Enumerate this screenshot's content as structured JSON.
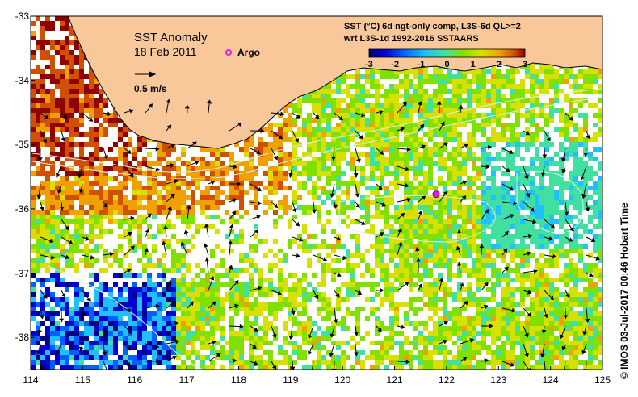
{
  "title": {
    "line1": "SST Anomaly",
    "line2": "18 Feb 2011"
  },
  "legend": {
    "argo_label": "Argo",
    "argo_color": "#e020e0",
    "vector_label": "0.5 m/s"
  },
  "header": {
    "line1": "SST (°C) 6d ngt-only comp, L3S-6d QL>=2",
    "line2": "wrt L3S-1d 1992-2016 SSTAARS"
  },
  "colorbar": {
    "ticks": [
      "-3",
      "-2",
      "-1",
      "0",
      "1",
      "2",
      "3"
    ],
    "range": [
      -3,
      3
    ],
    "colors": [
      "#000080",
      "#0000d0",
      "#0060ff",
      "#20c0ff",
      "#40e0a0",
      "#80e000",
      "#d8e000",
      "#f0a000",
      "#d05000",
      "#900000"
    ]
  },
  "axes": {
    "x_ticks": [
      "114",
      "115",
      "116",
      "117",
      "118",
      "119",
      "120",
      "121",
      "122",
      "123",
      "124",
      "125"
    ],
    "y_ticks": [
      "-33",
      "-34",
      "-35",
      "-36",
      "-37",
      "-38"
    ],
    "lon_range": [
      114,
      125
    ],
    "lat_range": [
      -38.5,
      -33
    ]
  },
  "argo_float": {
    "lon": 121.8,
    "lat": -35.77
  },
  "land_color": "#f8c89a",
  "credit": "IMOS 03-Jul-2017 00:46 Hobart Time",
  "copyright": "©"
}
